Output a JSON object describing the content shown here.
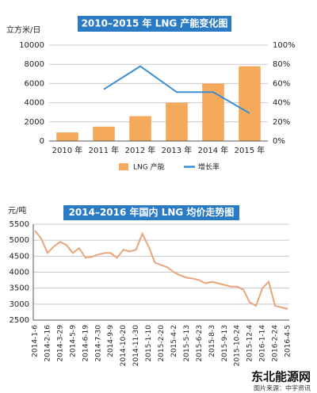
{
  "chart_data": [
    {
      "type": "bar",
      "title": "2010–2015 年 LNG 产能变化图",
      "y_label": "立方米/日",
      "categories": [
        "2010 年",
        "2011 年",
        "2012 年",
        "2013 年",
        "2014 年",
        "2015 年"
      ],
      "series": [
        {
          "name": "LNG 产能",
          "type": "bar",
          "color": "#f5a95b",
          "values": [
            900,
            1500,
            2600,
            4000,
            6000,
            7800
          ]
        },
        {
          "name": "增长率",
          "type": "line",
          "axis": "y2",
          "color": "#3b8ed4",
          "values": [
            null,
            54,
            78,
            51,
            51,
            29
          ]
        }
      ],
      "ylim": [
        0,
        10000
      ],
      "yticks": [
        0,
        2000,
        4000,
        6000,
        8000,
        10000
      ],
      "y2lim": [
        0,
        100
      ],
      "y2ticks": [
        {
          "value": 0,
          "label": "0%"
        },
        {
          "value": 20,
          "label": "20%"
        },
        {
          "value": 40,
          "label": "40%"
        },
        {
          "value": 60,
          "label": "60%"
        },
        {
          "value": 80,
          "label": "80%"
        },
        {
          "value": 100,
          "label": "100%"
        }
      ],
      "grid": true,
      "legend": "bottom"
    },
    {
      "type": "line",
      "title": "2014–2016 年国内 LNG 均价走势图",
      "y_label": "元/吨",
      "categories": [
        "2014-1-6",
        null,
        "2014-2-16",
        null,
        "2014-3-29",
        null,
        "2014-5-9",
        null,
        "2014-6-19",
        null,
        "2014-7-30",
        null,
        "2014-9-9",
        null,
        "2014-10-20",
        null,
        "2014-11-30",
        null,
        "2015-1-10",
        null,
        "2015-2-20",
        null,
        "2015-4-2",
        null,
        "2015-5-13",
        null,
        "2015-6-23",
        null,
        "2015-8-3",
        null,
        "2015-9-13",
        null,
        "2015-10-24",
        null,
        "2015-12-4",
        null,
        "2016-1-14",
        null,
        "2016-2-24",
        null,
        "2016-4-5"
      ],
      "values": [
        5300,
        5050,
        4600,
        4800,
        4950,
        4850,
        4600,
        4750,
        4450,
        4480,
        4550,
        4600,
        4600,
        4450,
        4700,
        4650,
        4700,
        5200,
        4800,
        4300,
        4220,
        4150,
        4000,
        3900,
        3830,
        3800,
        3750,
        3650,
        3700,
        3650,
        3600,
        3550,
        3550,
        3450,
        3050,
        2950,
        3500,
        3700,
        2950,
        2900,
        2850
      ],
      "color": "#e9a57a",
      "ylim": [
        2500,
        5500
      ],
      "yticks": [
        2500,
        3000,
        3500,
        4000,
        4500,
        5000,
        5500
      ],
      "grid": true
    }
  ],
  "footer": {
    "site": "东北能源网",
    "source": "图片来源：中宇资讯"
  }
}
